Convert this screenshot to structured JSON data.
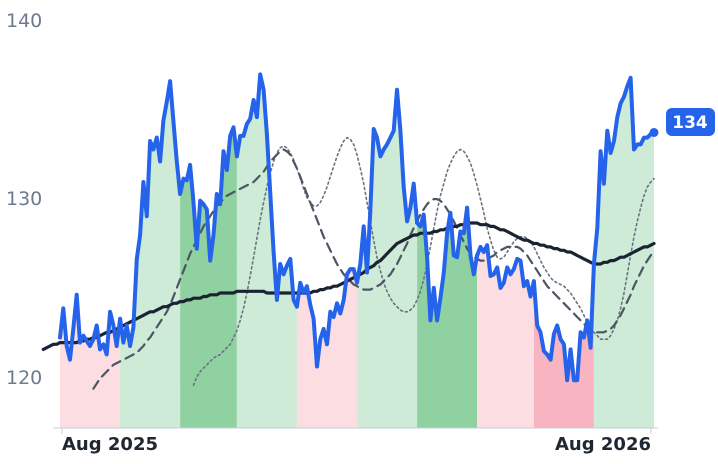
{
  "colors": {
    "price": "#2563eb",
    "ma_long": "#1b2333",
    "ma_mid": "#4b5563",
    "ma_short": "#6b7280",
    "band_up_strong": "#8fd1a0",
    "band_up_light": "#cdebd6",
    "band_down_strong": "#f8b4c0",
    "band_down_light": "#fbdde2",
    "badge": "#2563eb"
  },
  "chart_data": {
    "type": "line",
    "ylim": [
      117,
      141
    ],
    "yticks": [
      "140",
      "130",
      "120"
    ],
    "xticks": [
      "Aug 2025",
      "Aug 2026"
    ],
    "last_value_label": "134",
    "grid": false,
    "series": [
      {
        "values": [
          122.3,
          124.0,
          121.8,
          121.0,
          122.8,
          124.8,
          122.0,
          122.4,
          122.1,
          121.8,
          122.2,
          123.0,
          121.6,
          121.9,
          121.3,
          123.8,
          123.0,
          121.8,
          123.4,
          122.0,
          123.0,
          121.8,
          122.9,
          126.9,
          128.3,
          131.4,
          129.4,
          133.8,
          133.3,
          134.0,
          132.6,
          135.0,
          136.1,
          137.3,
          134.9,
          132.6,
          130.7,
          131.6,
          131.5,
          132.4,
          130.2,
          127.5,
          130.3,
          130.1,
          129.8,
          126.8,
          128.3,
          130.7,
          130.1,
          133.2,
          132.1,
          134.1,
          134.6,
          132.9,
          134.1,
          134.1,
          134.8,
          135.1,
          136.2,
          135.2,
          137.7,
          136.8,
          134.2,
          130.8,
          127.3,
          124.5,
          126.6,
          126.0,
          126.5,
          126.9,
          124.5,
          124.1,
          125.5,
          124.9,
          125.3,
          124.2,
          123.4,
          120.6,
          122.2,
          122.8,
          121.9,
          123.8,
          123.5,
          124.3,
          123.7,
          124.5,
          126.0,
          126.3,
          126.3,
          125.5,
          126.6,
          128.8,
          126.1,
          129.7,
          134.5,
          134.0,
          132.9,
          133.3,
          133.6,
          134.0,
          134.4,
          136.8,
          134.4,
          131.1,
          129.1,
          129.9,
          131.3,
          129.0,
          128.8,
          129.5,
          127.0,
          123.3,
          125.2,
          123.3,
          124.6,
          126.1,
          128.4,
          129.6,
          127.1,
          127.0,
          128.5,
          128.4,
          129.9,
          127.1,
          126.0,
          127.1,
          127.6,
          127.3,
          127.7,
          125.9,
          126.0,
          126.4,
          125.2,
          125.5,
          126.4,
          126.0,
          126.3,
          126.9,
          126.8,
          125.3,
          125.6,
          124.7,
          125.6,
          123.0,
          122.6,
          121.5,
          121.3,
          121.0,
          122.5,
          123.0,
          122.2,
          121.9,
          119.8,
          121.6,
          119.8,
          119.8,
          122.6,
          122.3,
          123.3,
          121.7,
          126.6,
          128.7,
          133.2,
          131.3,
          134.4,
          133.1,
          133.8,
          135.2,
          136.0,
          136.4,
          137.0,
          137.5,
          133.3,
          133.6,
          133.6,
          134.0,
          134.0,
          134.2,
          134.3
        ]
      },
      {
        "values": [
          121.6,
          121.7,
          121.8,
          121.9,
          121.9,
          122.0,
          122.0,
          122.0,
          122.0,
          122.0,
          122.0,
          122.1,
          122.1,
          122.2,
          122.2,
          122.3,
          122.3,
          122.4,
          122.5,
          122.6,
          122.6,
          122.7,
          122.8,
          122.9,
          123.0,
          123.1,
          123.2,
          123.3,
          123.4,
          123.5,
          123.6,
          123.7,
          123.8,
          123.8,
          123.9,
          124.0,
          124.1,
          124.1,
          124.2,
          124.3,
          124.3,
          124.4,
          124.4,
          124.5,
          124.5,
          124.6,
          124.6,
          124.6,
          124.7,
          124.7,
          124.8,
          124.8,
          124.8,
          124.9,
          124.9,
          124.9,
          124.9,
          124.9,
          125.0,
          125.0,
          125.0,
          125.0,
          125.0,
          125.0,
          125.0,
          125.0,
          125.0,
          124.9,
          124.9,
          124.9,
          124.9,
          124.9,
          124.9,
          124.9,
          124.9,
          124.9,
          124.9,
          124.9,
          124.9,
          124.9,
          124.9,
          125.0,
          125.0,
          125.1,
          125.1,
          125.2,
          125.2,
          125.3,
          125.3,
          125.4,
          125.5,
          125.6,
          125.7,
          125.8,
          125.9,
          126.0,
          126.1,
          126.3,
          126.4,
          126.5,
          126.7,
          126.8,
          127.0,
          127.2,
          127.4,
          127.6,
          127.8,
          127.9,
          128.0,
          128.1,
          128.2,
          128.3,
          128.3,
          128.4,
          128.4,
          128.4,
          128.4,
          128.5,
          128.5,
          128.6,
          128.6,
          128.7,
          128.7,
          128.8,
          128.8,
          128.9,
          128.9,
          129.0,
          129.0,
          129.0,
          129.0,
          128.9,
          128.9,
          128.9,
          128.8,
          128.8,
          128.7,
          128.6,
          128.6,
          128.5,
          128.4,
          128.3,
          128.2,
          128.1,
          128.0,
          128.0,
          127.9,
          127.8,
          127.8,
          127.7,
          127.7,
          127.6,
          127.6,
          127.5,
          127.5,
          127.4,
          127.4,
          127.3,
          127.3,
          127.2,
          127.1,
          127.0,
          126.9,
          126.8,
          126.7,
          126.6,
          126.6,
          126.6,
          126.7,
          126.7,
          126.8,
          126.8,
          126.9,
          127.0,
          127.0,
          127.1,
          127.2,
          127.3,
          127.4,
          127.5,
          127.6,
          127.6,
          127.7,
          127.8
        ]
      },
      {
        "values": [
          119.3,
          119.6,
          119.9,
          120.1,
          120.3,
          120.5,
          120.7,
          120.8,
          120.9,
          121.0,
          121.1,
          121.2,
          121.3,
          121.4,
          121.6,
          121.8,
          122.1,
          122.3,
          122.6,
          122.9,
          123.2,
          123.5,
          123.8,
          124.2,
          124.7,
          125.2,
          125.7,
          126.2,
          126.7,
          127.2,
          127.6,
          128.0,
          128.4,
          128.8,
          129.1,
          129.4,
          129.7,
          130.0,
          130.2,
          130.4,
          130.6,
          130.7,
          130.8,
          130.9,
          131.0,
          131.1,
          131.2,
          131.3,
          131.4,
          131.6,
          131.8,
          132.0,
          132.3,
          132.6,
          132.8,
          133.0,
          133.2,
          133.3,
          133.2,
          133.0,
          132.6,
          132.2,
          131.7,
          131.2,
          130.7,
          130.2,
          129.7,
          129.2,
          128.7,
          128.2,
          127.8,
          127.4,
          127.0,
          126.6,
          126.3,
          126.0,
          125.8,
          125.6,
          125.4,
          125.3,
          125.2,
          125.1,
          125.1,
          125.1,
          125.2,
          125.3,
          125.4,
          125.6,
          125.8,
          126.0,
          126.3,
          126.6,
          127.0,
          127.4,
          127.8,
          128.3,
          128.7,
          129.1,
          129.5,
          129.8,
          130.1,
          130.3,
          130.4,
          130.4,
          130.3,
          130.1,
          129.8,
          129.5,
          129.1,
          128.7,
          128.3,
          127.9,
          127.5,
          127.2,
          127.0,
          126.9,
          126.8,
          126.8,
          126.9,
          127.0,
          127.1,
          127.3,
          127.4,
          127.5,
          127.6,
          127.6,
          127.6,
          127.6,
          127.5,
          127.3,
          127.1,
          126.8,
          126.5,
          126.2,
          125.9,
          125.6,
          125.3,
          125.1,
          124.9,
          124.7,
          124.5,
          124.3,
          124.1,
          123.9,
          123.7,
          123.5,
          123.3,
          123.1,
          122.9,
          122.8,
          122.7,
          122.6,
          122.6,
          122.6,
          122.7,
          122.8,
          123.0,
          123.3,
          123.6,
          124.0,
          124.4,
          124.8,
          125.3,
          125.7,
          126.1,
          126.5,
          126.8,
          127.1,
          127.4
        ]
      },
      {
        "values": [
          119.5,
          120.0,
          120.3,
          120.5,
          120.7,
          120.9,
          121.1,
          121.2,
          121.3,
          121.5,
          121.7,
          121.9,
          122.3,
          122.7,
          123.3,
          124.0,
          124.9,
          125.9,
          127.0,
          128.1,
          129.2,
          130.2,
          131.1,
          131.9,
          132.6,
          133.1,
          133.4,
          133.5,
          133.4,
          133.1,
          132.7,
          132.2,
          131.6,
          131.0,
          130.5,
          130.2,
          130.0,
          130.0,
          130.2,
          130.6,
          131.1,
          131.7,
          132.3,
          132.9,
          133.4,
          133.8,
          134.0,
          133.9,
          133.6,
          133.0,
          132.2,
          131.3,
          130.2,
          129.1,
          128.0,
          127.0,
          126.2,
          125.5,
          125.0,
          124.6,
          124.3,
          124.1,
          123.9,
          123.8,
          123.8,
          123.9,
          124.1,
          124.5,
          125.0,
          125.7,
          126.6,
          127.6,
          128.7,
          129.7,
          130.6,
          131.3,
          132.0,
          132.5,
          132.9,
          133.2,
          133.3,
          133.2,
          132.9,
          132.5,
          131.9,
          131.2,
          130.4,
          129.6,
          128.7,
          128.0,
          127.4,
          127.0,
          126.9,
          127.0,
          127.3,
          127.6,
          127.9,
          128.1,
          128.2,
          128.2,
          128.1,
          127.9,
          127.6,
          127.2,
          126.8,
          126.4,
          126.1,
          125.8,
          125.6,
          125.5,
          125.4,
          125.3,
          125.1,
          124.9,
          124.6,
          124.3,
          124.0,
          123.6,
          123.2,
          122.9,
          122.6,
          122.4,
          122.2,
          122.2,
          122.2,
          122.4,
          122.8,
          123.3,
          124.0,
          124.9,
          126.0,
          127.1,
          128.2,
          129.1,
          129.9,
          130.6,
          131.1,
          131.4,
          131.6
        ]
      }
    ],
    "bands": [
      {
        "dir": "down",
        "strength": "light"
      },
      {
        "dir": "up",
        "strength": "light"
      },
      {
        "dir": "up",
        "strength": "strong"
      },
      {
        "dir": "up",
        "strength": "light"
      },
      {
        "dir": "down",
        "strength": "light"
      },
      {
        "dir": "up",
        "strength": "light"
      },
      {
        "dir": "up",
        "strength": "strong"
      },
      {
        "dir": "down",
        "strength": "light"
      },
      {
        "dir": "down",
        "strength": "strong"
      },
      {
        "dir": "up",
        "strength": "light"
      }
    ]
  }
}
